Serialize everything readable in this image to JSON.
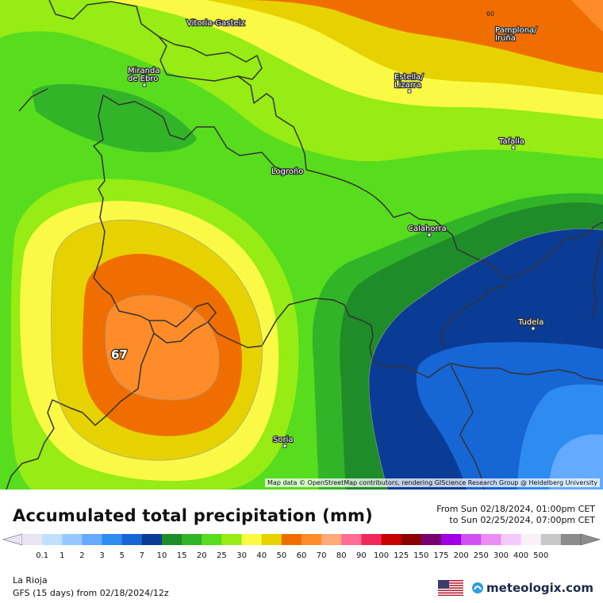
{
  "map": {
    "cities": [
      {
        "name": "Vitoria-Gasteiz",
        "dot": false
      },
      {
        "name": "Pamplona/\nIruña",
        "dot": false
      },
      {
        "name": "Miranda\nde Ebro",
        "dot": true
      },
      {
        "name": "Estella/\nLizarra",
        "dot": true
      },
      {
        "name": "Tafalla",
        "dot": true
      },
      {
        "name": "Logroño",
        "dot": false
      },
      {
        "name": "Calahorra",
        "dot": true
      },
      {
        "name": "Tudela",
        "dot": true
      },
      {
        "name": "Soria",
        "dot": true
      }
    ],
    "max_value_label": "67",
    "contour_label_60": "60",
    "attribution": "Map data © OpenStreetMap contributors, rendering GIScience Research Group @ Heidelberg University"
  },
  "title": "Accumulated total precipitation (mm)",
  "period": {
    "from": "From Sun 02/18/2024, 01:00pm CET",
    "to": "to Sun 02/25/2024, 07:00pm CET"
  },
  "legend": {
    "levels": [
      "0.1",
      "1",
      "2",
      "3",
      "5",
      "7",
      "10",
      "15",
      "20",
      "25",
      "30",
      "40",
      "50",
      "60",
      "70",
      "80",
      "90",
      "100",
      "125",
      "150",
      "175",
      "200",
      "250",
      "300",
      "400",
      "500"
    ],
    "colors": [
      "#e8e4f4",
      "#bfe0ff",
      "#96c8ff",
      "#64aaff",
      "#2e8cf0",
      "#1666d6",
      "#0a3c96",
      "#1e8c28",
      "#32b428",
      "#58dc1e",
      "#96ec14",
      "#fafa46",
      "#e6d200",
      "#f06e00",
      "#ff8c28",
      "#ffaa78",
      "#ff6e96",
      "#f0285a",
      "#c80000",
      "#8c0000",
      "#78006e",
      "#a000e6",
      "#d250f0",
      "#eb8cf5",
      "#f5c8fa",
      "#faf0fa",
      "#c8c8c8",
      "#8c8c8c"
    ]
  },
  "footer": {
    "region": "La Rioja",
    "model": "GFS (15 days) from  02/18/2024/12z",
    "brand": "meteologix.com"
  }
}
